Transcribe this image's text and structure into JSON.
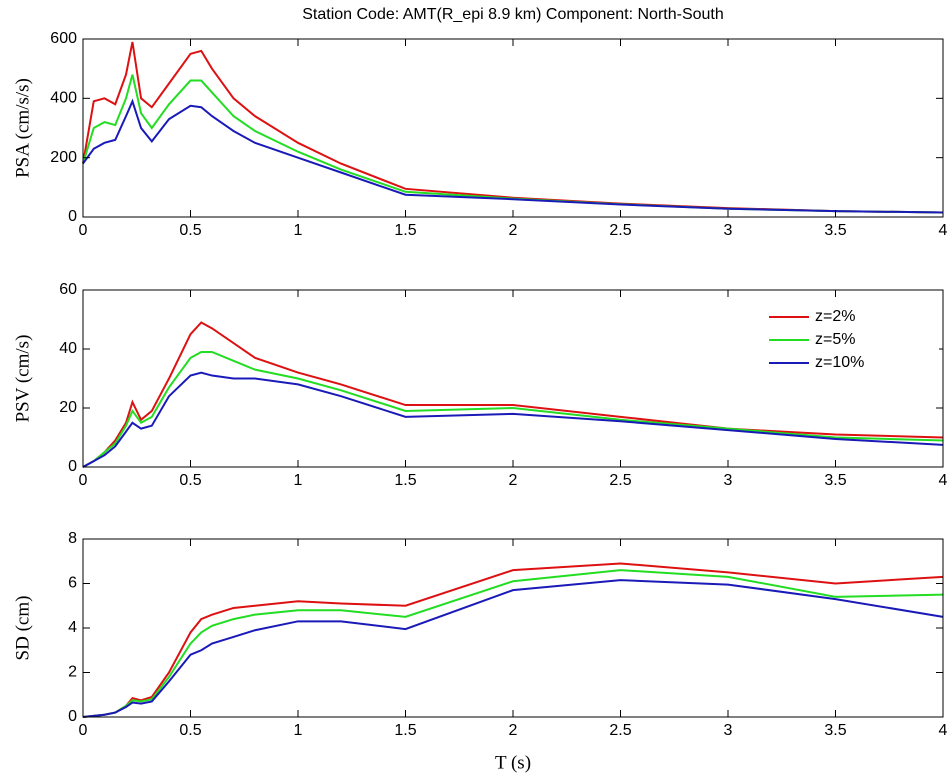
{
  "chart_data": [
    {
      "type": "line",
      "title": "Station Code: AMT(R_epi 8.9 km) Component: North-South",
      "ylabel": "PSA (cm/s/s)",
      "x": [
        0,
        0.05,
        0.1,
        0.15,
        0.2,
        0.23,
        0.27,
        0.32,
        0.4,
        0.5,
        0.55,
        0.6,
        0.7,
        0.8,
        1,
        1.2,
        1.5,
        2,
        2.5,
        3,
        3.5,
        4
      ],
      "series": [
        {
          "color": "#dd1111",
          "values": [
            180,
            390,
            400,
            380,
            480,
            590,
            400,
            370,
            450,
            550,
            560,
            500,
            400,
            340,
            250,
            180,
            95,
            65,
            45,
            30,
            20,
            15
          ]
        },
        {
          "color": "#22dd22",
          "values": [
            180,
            300,
            320,
            310,
            400,
            480,
            350,
            300,
            380,
            460,
            460,
            420,
            340,
            290,
            220,
            160,
            85,
            62,
            43,
            28,
            20,
            15
          ]
        },
        {
          "color": "#1a1ab8",
          "values": [
            180,
            230,
            250,
            260,
            340,
            390,
            300,
            255,
            330,
            375,
            370,
            340,
            290,
            250,
            200,
            150,
            75,
            60,
            42,
            28,
            20,
            15
          ]
        }
      ],
      "xlim": [
        0,
        4
      ],
      "xticks": [
        0,
        0.5,
        1,
        1.5,
        2,
        2.5,
        3,
        3.5,
        4
      ],
      "ylim": [
        0,
        600
      ],
      "yticks": [
        0,
        200,
        400,
        600
      ]
    },
    {
      "type": "line",
      "ylabel": "PSV (cm/s)",
      "legend": "upper right",
      "x": [
        0,
        0.05,
        0.1,
        0.15,
        0.2,
        0.23,
        0.27,
        0.32,
        0.4,
        0.5,
        0.55,
        0.6,
        0.7,
        0.8,
        1,
        1.2,
        1.5,
        2,
        2.5,
        3,
        3.5,
        4
      ],
      "series": [
        {
          "name": "z=2%",
          "color": "#dd1111",
          "values": [
            0,
            2,
            5,
            9,
            15,
            22,
            16,
            19,
            30,
            45,
            49,
            47,
            42,
            37,
            32,
            28,
            21,
            21,
            17,
            13,
            11,
            10
          ]
        },
        {
          "name": "z=5%",
          "color": "#22dd22",
          "values": [
            0,
            2,
            5,
            8,
            14,
            19,
            15,
            17,
            27,
            37,
            39,
            39,
            36,
            33,
            30,
            26,
            19,
            20,
            16,
            13,
            10,
            9
          ]
        },
        {
          "name": "z=10%",
          "color": "#1a1ab8",
          "values": [
            0,
            2,
            4,
            7,
            12,
            15,
            13,
            14,
            24,
            31,
            32,
            31,
            30,
            30,
            28,
            24,
            17,
            18,
            15.5,
            12.5,
            9.5,
            7.5
          ]
        }
      ],
      "xlim": [
        0,
        4
      ],
      "xticks": [
        0,
        0.5,
        1,
        1.5,
        2,
        2.5,
        3,
        3.5,
        4
      ],
      "ylim": [
        0,
        60
      ],
      "yticks": [
        0,
        20,
        40,
        60
      ]
    },
    {
      "type": "line",
      "ylabel": "SD (cm)",
      "xlabel": "T (s)",
      "x": [
        0,
        0.05,
        0.1,
        0.15,
        0.2,
        0.23,
        0.27,
        0.32,
        0.4,
        0.5,
        0.55,
        0.6,
        0.7,
        0.8,
        1,
        1.2,
        1.5,
        2,
        2.5,
        3,
        3.5,
        4
      ],
      "series": [
        {
          "color": "#dd1111",
          "values": [
            0,
            0.05,
            0.1,
            0.2,
            0.5,
            0.85,
            0.75,
            0.9,
            2.0,
            3.8,
            4.4,
            4.6,
            4.9,
            5.0,
            5.2,
            5.1,
            5.0,
            6.6,
            6.9,
            6.5,
            6.0,
            6.3
          ]
        },
        {
          "color": "#22dd22",
          "values": [
            0,
            0.05,
            0.1,
            0.2,
            0.5,
            0.75,
            0.7,
            0.8,
            1.8,
            3.3,
            3.8,
            4.1,
            4.4,
            4.6,
            4.8,
            4.8,
            4.5,
            6.1,
            6.6,
            6.3,
            5.4,
            5.5
          ]
        },
        {
          "color": "#1a1ab8",
          "values": [
            0,
            0.05,
            0.1,
            0.2,
            0.45,
            0.65,
            0.6,
            0.7,
            1.6,
            2.8,
            3.0,
            3.3,
            3.6,
            3.9,
            4.3,
            4.3,
            3.95,
            5.7,
            6.15,
            5.95,
            5.3,
            4.5
          ]
        }
      ],
      "xlim": [
        0,
        4
      ],
      "xticks": [
        0,
        0.5,
        1,
        1.5,
        2,
        2.5,
        3,
        3.5,
        4
      ],
      "ylim": [
        0,
        8
      ],
      "yticks": [
        0,
        2,
        4,
        6,
        8
      ]
    }
  ]
}
